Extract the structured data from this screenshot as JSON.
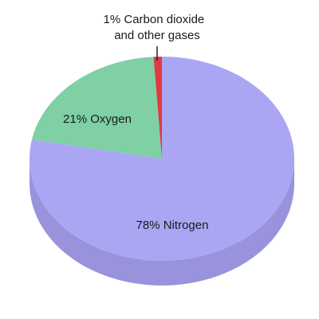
{
  "chart_data": {
    "type": "pie",
    "style": "3d",
    "slices": [
      {
        "name": "Nitrogen",
        "value": 78,
        "color": "#aba6f3",
        "side_color": "#9893dc",
        "label": "78% Nitrogen"
      },
      {
        "name": "Oxygen",
        "value": 21,
        "color": "#7fd0a4",
        "side_color": "#68b68b",
        "label": "21% Oxygen"
      },
      {
        "name": "Carbon dioxide and other gases",
        "value": 1,
        "color": "#dd3a44",
        "side_color": "#b82e36",
        "label_lines": [
          "1% Carbon dioxide",
          "and other gases"
        ]
      }
    ]
  }
}
